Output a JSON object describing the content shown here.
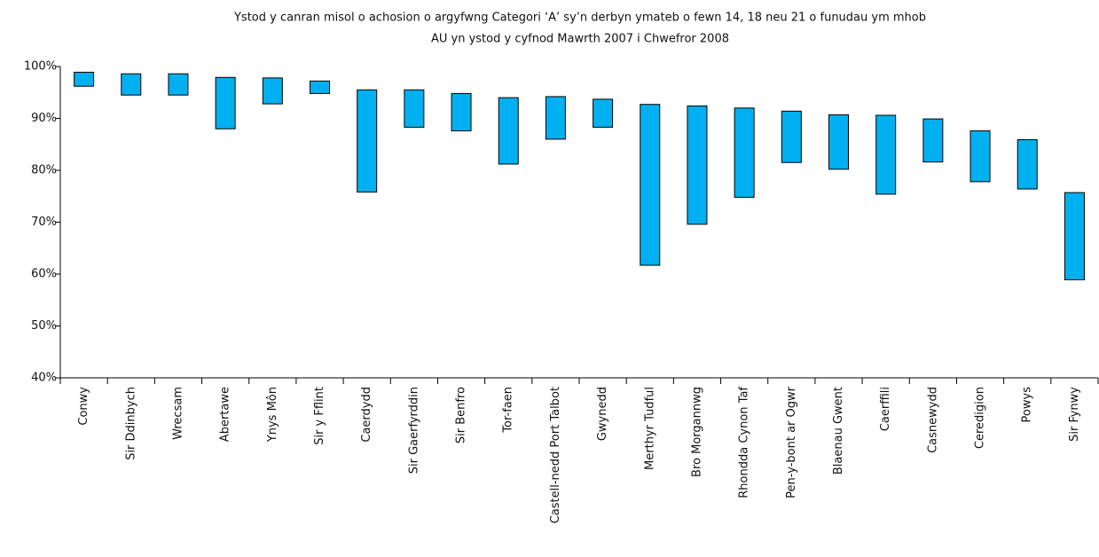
{
  "chart_data": {
    "type": "floating_bar",
    "title": [
      "Ystod y canran misol o achosion o argyfwng Categori ‘A’ sy’n derbyn ymateb o fewn 14, 18 neu 21 o funudau ym mhob",
      "AU yn ystod y cyfnod Mawrth 2007 i Chwefror 2008"
    ],
    "categories": [
      "Conwy",
      "Sir Ddinbych",
      "Wrecsam",
      "Abertawe",
      "Ynys Môn",
      "Sir y Fflint",
      "Caerdydd",
      "Sir Gaerfyrddin",
      "Sir Benfro",
      "Tor-faen",
      "Castell-nedd Port Talbot",
      "Gwynedd",
      "Merthyr Tudful",
      "Bro Morgannwg",
      "Rhondda Cynon Taf",
      "Pen-y-bont ar Ogwr",
      "Blaenau Gwent",
      "Caerffili",
      "Casnewydd",
      "Ceredigion",
      "Powys",
      "Sir Fynwy"
    ],
    "low": [
      96.2,
      94.5,
      94.5,
      88.0,
      92.8,
      94.8,
      75.8,
      88.3,
      87.6,
      81.2,
      86.0,
      88.3,
      61.7,
      69.6,
      74.8,
      81.5,
      80.2,
      75.4,
      81.6,
      77.8,
      76.4,
      58.9
    ],
    "high": [
      98.9,
      98.6,
      98.6,
      97.9,
      97.8,
      97.2,
      95.5,
      95.5,
      94.8,
      94.0,
      94.2,
      93.7,
      92.7,
      92.4,
      92.0,
      91.4,
      90.7,
      90.6,
      89.9,
      87.6,
      85.9,
      75.7
    ],
    "color": "#00b0f0",
    "ylim": [
      40,
      100
    ],
    "yticks": [
      {
        "value": 40,
        "label": "40%"
      },
      {
        "value": 50,
        "label": "50%"
      },
      {
        "value": 60,
        "label": "60%"
      },
      {
        "value": 70,
        "label": "70%"
      },
      {
        "value": 80,
        "label": "80%"
      },
      {
        "value": 90,
        "label": "90%"
      },
      {
        "value": 100,
        "label": "100%"
      }
    ],
    "grid": false
  }
}
